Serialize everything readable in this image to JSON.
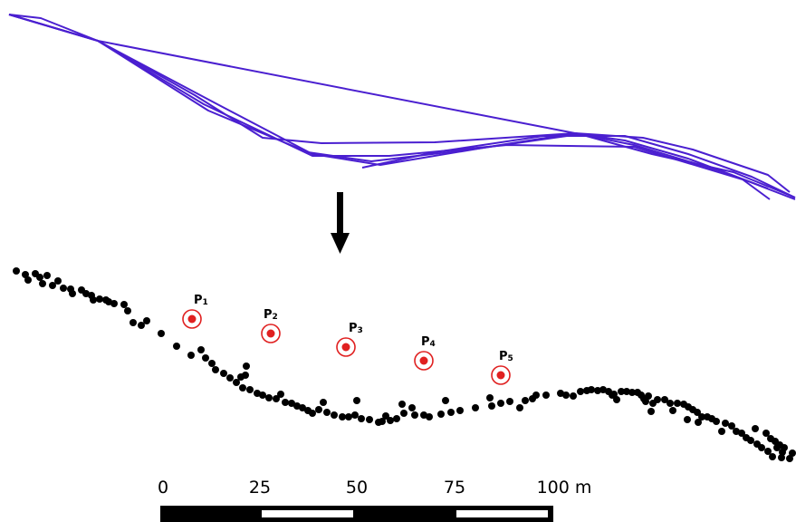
{
  "colors": {
    "trajectory": "#4a1fd0",
    "points": "#000000",
    "marker_ring": "#e02020",
    "marker_dot": "#e02020",
    "arrow": "#000000"
  },
  "arrow_icon": "down-arrow-icon",
  "markers": [
    {
      "main": "P",
      "sub": "1"
    },
    {
      "main": "P",
      "sub": "2"
    },
    {
      "main": "P",
      "sub": "3"
    },
    {
      "main": "P",
      "sub": "4"
    },
    {
      "main": "P",
      "sub": "5"
    }
  ],
  "scale_bar": {
    "ticks": [
      "0",
      "25",
      "50",
      "75",
      "100 m"
    ]
  }
}
